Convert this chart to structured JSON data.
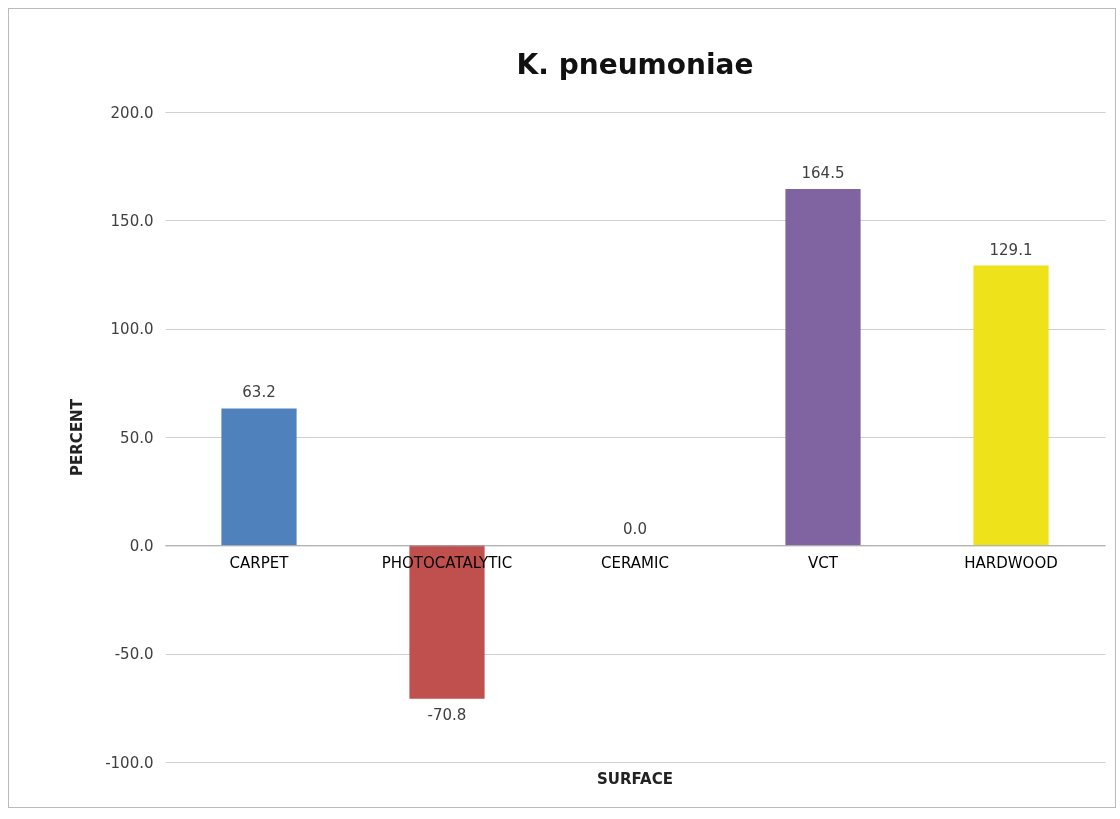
{
  "chart_data": {
    "type": "bar",
    "title": "K. pneumoniae",
    "xlabel": "SURFACE",
    "ylabel": "PERCENT",
    "categories": [
      "CARPET",
      "PHOTOCATALYTIC",
      "CERAMIC",
      "VCT",
      "HARDWOOD"
    ],
    "values": [
      63.2,
      -70.8,
      0.0,
      164.5,
      129.1
    ],
    "colors": [
      "#4f81bd",
      "#c0504d",
      "#9bbb59",
      "#8064a2",
      "#eee21a"
    ],
    "ylim": [
      -100,
      200
    ],
    "yticks": [
      {
        "value": -100,
        "label": "-100.0"
      },
      {
        "value": -50,
        "label": "-50.0"
      },
      {
        "value": 0,
        "label": "0.0"
      },
      {
        "value": 50,
        "label": "50.0"
      },
      {
        "value": 100,
        "label": "100.0"
      },
      {
        "value": 150,
        "label": "150.0"
      },
      {
        "value": 200,
        "label": "200.0"
      }
    ],
    "value_labels": [
      "63.2",
      "-70.8",
      "0.0",
      "164.5",
      "129.1"
    ],
    "grid": "y"
  }
}
